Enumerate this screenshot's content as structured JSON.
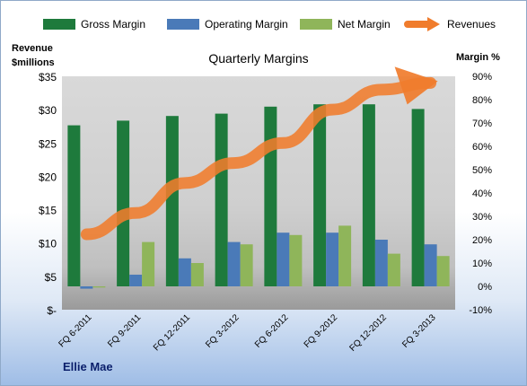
{
  "chart_data": {
    "type": "bar",
    "title": "Quarterly Margins",
    "categories": [
      "FQ 6-2011",
      "FQ 9-2011",
      "FQ 12-2011",
      "FQ 3-2012",
      "FQ 6-2012",
      "FQ 9-2012",
      "FQ 12-2012",
      "FQ 3-2013"
    ],
    "series": [
      {
        "name": "Gross Margin",
        "axis": "right",
        "color": "#1e7a3c",
        "values": [
          69,
          71,
          73,
          74,
          77,
          78,
          78,
          76
        ]
      },
      {
        "name": "Operating Margin",
        "axis": "right",
        "color": "#4a7ab8",
        "values": [
          -1,
          5,
          12,
          19,
          23,
          23,
          20,
          18
        ]
      },
      {
        "name": "Net Margin",
        "axis": "right",
        "color": "#8fb55a",
        "values": [
          -0.5,
          19,
          10,
          18,
          22,
          26,
          14,
          13
        ]
      }
    ],
    "line_series": {
      "name": "Revenues",
      "axis": "left",
      "color": "#f07c2c",
      "values": [
        11.3,
        14.5,
        19,
        22,
        25,
        30,
        33,
        34
      ]
    },
    "left_axis": {
      "label_line1": "Revenue",
      "label_line2": "$millions",
      "min": 0,
      "max": 35,
      "tick_labels": [
        "$-",
        "$5",
        "$10",
        "$15",
        "$20",
        "$25",
        "$30",
        "$35"
      ]
    },
    "right_axis": {
      "label": "Margin %",
      "min": -10,
      "max": 90,
      "tick_labels": [
        "-10%",
        "0%",
        "10%",
        "20%",
        "30%",
        "40%",
        "50%",
        "60%",
        "70%",
        "80%",
        "90%"
      ]
    },
    "legend_position": "top",
    "grid": false
  },
  "footer": "Ellie Mae"
}
